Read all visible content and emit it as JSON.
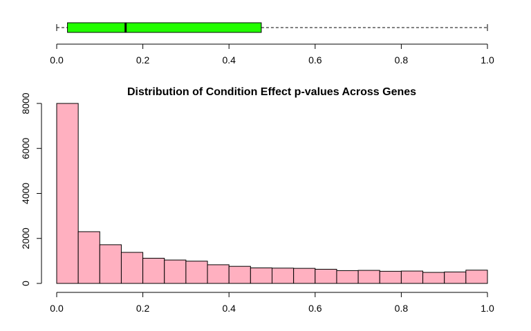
{
  "chart_data": [
    {
      "type": "boxplot",
      "orientation": "horizontal",
      "fill_color": "#22ff00",
      "stats": {
        "min": 0.0,
        "q1": 0.025,
        "median": 0.16,
        "q3": 0.475,
        "max": 1.0
      },
      "xlim": [
        0,
        1
      ],
      "x_ticks": [
        "0.0",
        "0.2",
        "0.4",
        "0.6",
        "0.8",
        "1.0"
      ]
    },
    {
      "type": "bar",
      "subtype": "histogram",
      "title": "Distribution of Condition Effect p-values Across Genes",
      "fill_color": "#ffb0c0",
      "bin_width": 0.05,
      "bin_starts": [
        0.0,
        0.05,
        0.1,
        0.15,
        0.2,
        0.25,
        0.3,
        0.35,
        0.4,
        0.45,
        0.5,
        0.55,
        0.6,
        0.65,
        0.7,
        0.75,
        0.8,
        0.85,
        0.9,
        0.95
      ],
      "values": [
        8000,
        2300,
        1720,
        1380,
        1120,
        1040,
        990,
        830,
        760,
        690,
        680,
        670,
        630,
        570,
        580,
        540,
        550,
        490,
        510,
        590
      ],
      "xlim": [
        0,
        1
      ],
      "ylim": [
        0,
        8000
      ],
      "x_ticks": [
        "0.0",
        "0.2",
        "0.4",
        "0.6",
        "0.8",
        "1.0"
      ],
      "y_ticks": [
        "0",
        "2000",
        "4000",
        "6000",
        "8000"
      ]
    }
  ]
}
